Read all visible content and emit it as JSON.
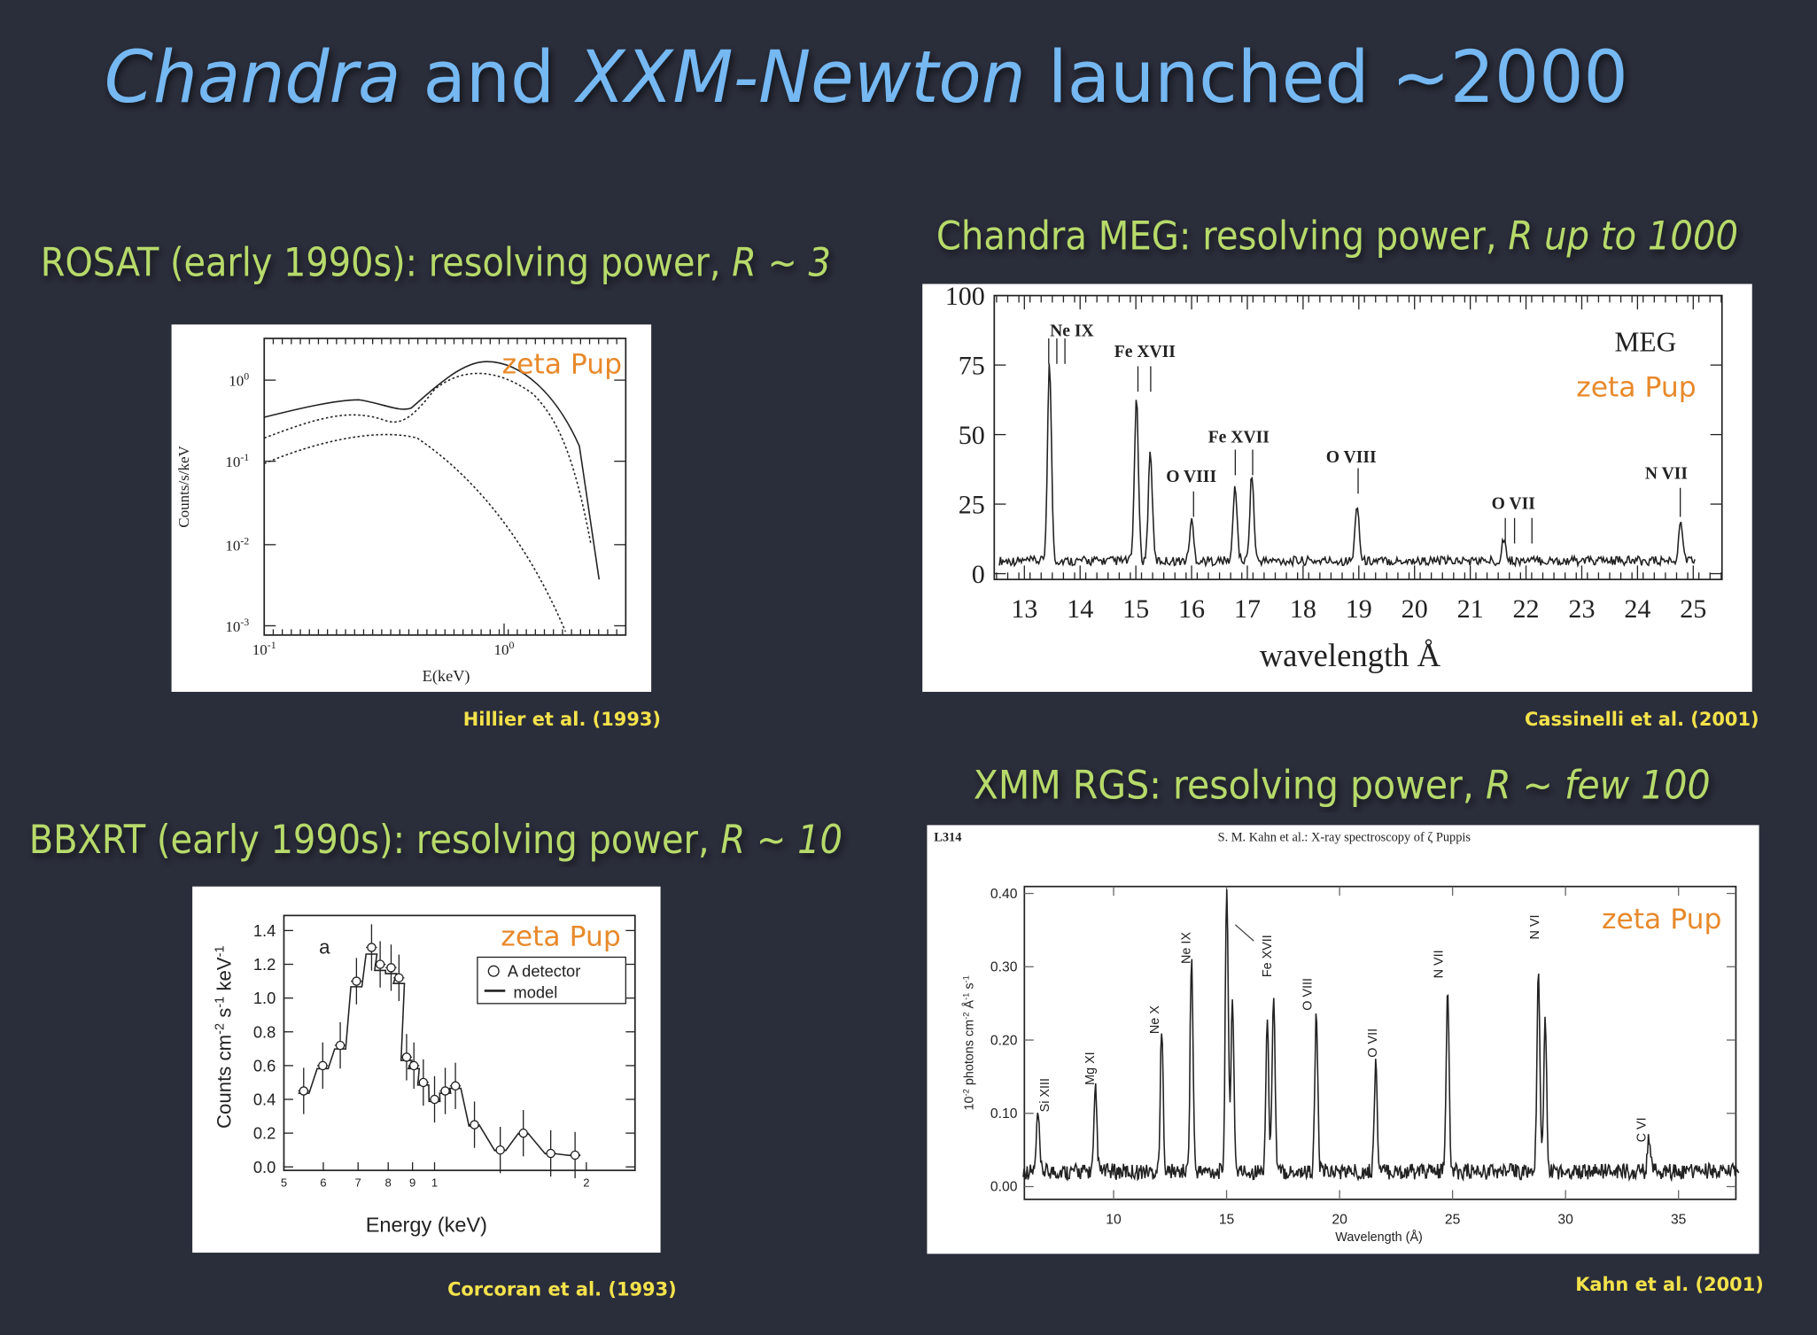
{
  "title": [
    "Chandra",
    " and ",
    "XXM-Newton",
    " launched ~2000"
  ],
  "rosat": {
    "heading": [
      "ROSAT (early 1990s): resolving power, ",
      "R ~ 3"
    ],
    "caption": "Hillier et al. (1993)",
    "figure": {
      "label": "zeta Pup",
      "ylabel": "Counts/s/keV",
      "xlabel": "E(keV)",
      "yticks": [
        {
          "base": "10",
          "exp": "0"
        },
        {
          "base": "10",
          "exp": "-1"
        },
        {
          "base": "10",
          "exp": "-2"
        },
        {
          "base": "10",
          "exp": "-3"
        }
      ],
      "xticks": [
        {
          "base": "10",
          "exp": "-1"
        },
        {
          "base": "10",
          "exp": "0"
        }
      ]
    }
  },
  "meg": {
    "heading": [
      "Chandra MEG: resolving power, ",
      "R up to 1000"
    ],
    "caption": "Cassinelli et al. (2001)",
    "figure": {
      "name": "MEG",
      "label": "zeta Pup",
      "xlabel": "wavelength  Å",
      "yticks": [
        "100",
        "75",
        "50",
        "25",
        "0"
      ],
      "xticks": [
        "13",
        "14",
        "15",
        "16",
        "17",
        "18",
        "19",
        "20",
        "21",
        "22",
        "23",
        "24",
        "25"
      ],
      "lines": [
        "Ne IX",
        "Fe XVII",
        "Fe XVII",
        "O VIII",
        "O VIII",
        "O VII",
        "N VII"
      ]
    }
  },
  "rgs": {
    "heading": [
      "XMM RGS:  resolving power, ",
      "R ~ few 100"
    ],
    "caption": "Kahn et al. (2001)",
    "figure": {
      "page": "L314",
      "header": "S. M. Kahn et al.: X-ray spectroscopy of ζ Puppis",
      "label": "zeta Pup",
      "yticks": [
        "0.40",
        "0.30",
        "0.20",
        "0.10",
        "0.00"
      ],
      "xticks": [
        "10",
        "15",
        "20",
        "25",
        "30",
        "35"
      ],
      "xlabel": "Wavelength (Å)",
      "ylabel": [
        "10",
        "-2",
        " photons cm",
        "-2",
        " Å",
        "-1",
        " s",
        "-1"
      ],
      "lines": [
        "Si XIII",
        "Mg XI",
        "Ne X",
        "Ne IX",
        "Fe XVII",
        "O VIII",
        "O VII",
        "N VII",
        "N VI",
        "C VI"
      ]
    }
  },
  "bbxrt": {
    "heading": [
      "BBXRT (early 1990s): resolving power, ",
      "R ~ 10"
    ],
    "caption": "Corcoran et al. (1993)",
    "figure": {
      "label": "zeta Pup",
      "panel": "a",
      "legend": [
        "A detector",
        "model"
      ],
      "yticks": [
        "1.4",
        "1.2",
        "1.0",
        "0.8",
        "0.6",
        "0.4",
        "0.2",
        "0.0"
      ],
      "xticks": [
        "5",
        "6",
        "7",
        "8",
        "9",
        "1",
        "2"
      ],
      "xlabel": "Energy (keV)",
      "ylabel": [
        "Counts cm",
        "-2",
        " s",
        "-1",
        " keV",
        "-1"
      ]
    }
  }
}
